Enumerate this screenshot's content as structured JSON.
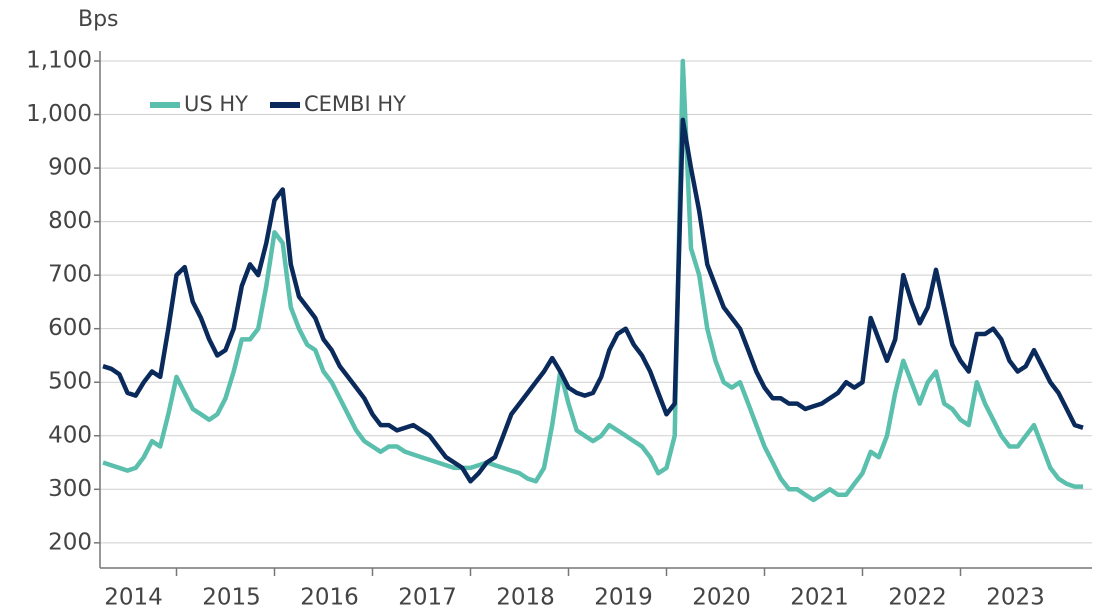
{
  "chart_data": {
    "type": "line",
    "y_label": "Bps",
    "legend": "upper left",
    "grid": true,
    "ylim": [
      153,
      1100
    ],
    "yticks": [
      200,
      300,
      400,
      500,
      600,
      700,
      800,
      900,
      {
        "value": 1000,
        "label": "1,000"
      },
      {
        "value": 1100,
        "label": "1,100"
      }
    ],
    "categories": [
      null,
      null,
      null,
      "2014",
      null,
      null,
      null,
      null,
      null,
      null,
      null,
      null,
      null,
      null,
      null,
      "2015",
      null,
      null,
      null,
      null,
      null,
      null,
      null,
      null,
      null,
      null,
      null,
      "2016",
      null,
      null,
      null,
      null,
      null,
      null,
      null,
      null,
      null,
      null,
      null,
      "2017",
      null,
      null,
      null,
      null,
      null,
      null,
      null,
      null,
      null,
      null,
      null,
      "2018",
      null,
      null,
      null,
      null,
      null,
      null,
      null,
      null,
      null,
      null,
      null,
      "2019",
      null,
      null,
      null,
      null,
      null,
      null,
      null,
      null,
      null,
      null,
      null,
      "2020",
      null,
      null,
      null,
      null,
      null,
      null,
      null,
      null,
      null,
      null,
      null,
      "2021",
      null,
      null,
      null,
      null,
      null,
      null,
      null,
      null,
      null,
      null,
      null,
      "2022",
      null,
      null,
      null,
      null,
      null,
      null,
      null,
      null,
      null,
      null,
      null,
      "2023",
      null,
      null,
      null,
      null,
      null,
      null,
      null,
      null,
      null
    ],
    "series": [
      {
        "name": "US HY",
        "color": "#5bbfad",
        "values": [
          350,
          345,
          340,
          335,
          340,
          360,
          390,
          380,
          440,
          510,
          480,
          450,
          440,
          430,
          440,
          470,
          520,
          580,
          580,
          600,
          680,
          780,
          760,
          640,
          600,
          570,
          560,
          520,
          500,
          470,
          440,
          410,
          390,
          380,
          370,
          380,
          380,
          370,
          365,
          360,
          355,
          350,
          345,
          340,
          340,
          340,
          345,
          350,
          345,
          340,
          335,
          330,
          320,
          315,
          340,
          420,
          520,
          460,
          410,
          400,
          390,
          400,
          420,
          410,
          400,
          390,
          380,
          360,
          330,
          340,
          400,
          1100,
          750,
          700,
          600,
          540,
          500,
          490,
          500,
          460,
          420,
          380,
          350,
          320,
          300,
          300,
          290,
          280,
          290,
          300,
          290,
          290,
          310,
          330,
          370,
          360,
          400,
          480,
          540,
          500,
          460,
          500,
          520,
          460,
          450,
          430,
          420,
          500,
          460,
          430,
          400,
          380,
          380,
          400,
          420,
          380,
          340,
          320,
          310,
          305,
          305
        ]
      },
      {
        "name": "CEMBI HY",
        "color": "#0a2a5c",
        "values": [
          530,
          525,
          515,
          480,
          475,
          500,
          520,
          510,
          600,
          700,
          715,
          650,
          620,
          580,
          550,
          560,
          600,
          680,
          720,
          700,
          760,
          840,
          860,
          720,
          660,
          640,
          620,
          580,
          560,
          530,
          510,
          490,
          470,
          440,
          420,
          420,
          410,
          415,
          420,
          410,
          400,
          380,
          360,
          350,
          340,
          315,
          330,
          350,
          360,
          400,
          440,
          460,
          480,
          500,
          520,
          545,
          520,
          490,
          480,
          475,
          480,
          510,
          560,
          590,
          600,
          570,
          550,
          520,
          480,
          440,
          460,
          990,
          900,
          820,
          720,
          680,
          640,
          620,
          600,
          560,
          520,
          490,
          470,
          470,
          460,
          460,
          450,
          455,
          460,
          470,
          480,
          500,
          490,
          500,
          620,
          580,
          540,
          580,
          700,
          650,
          610,
          640,
          710,
          640,
          570,
          540,
          520,
          590,
          590,
          600,
          580,
          540,
          520,
          530,
          560,
          530,
          500,
          480,
          450,
          420,
          415
        ]
      }
    ]
  }
}
